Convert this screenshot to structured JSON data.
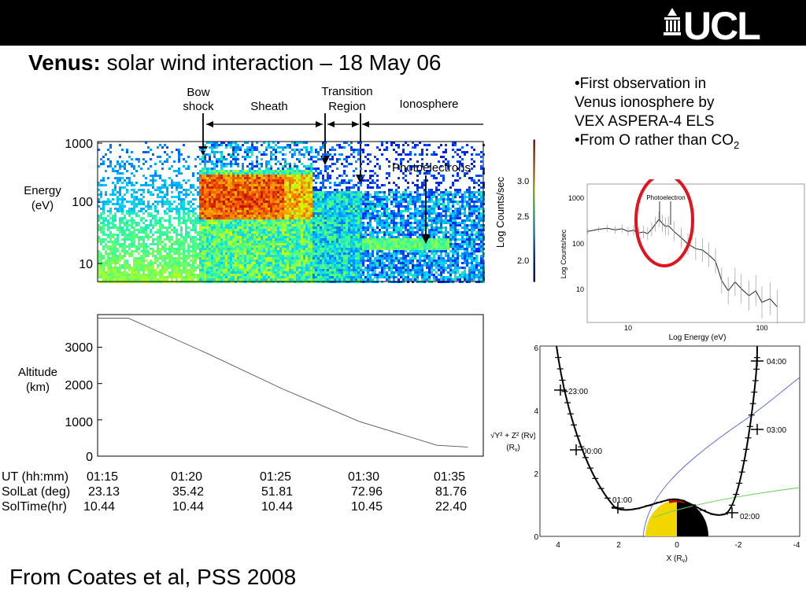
{
  "header": {
    "logo_text": "UCL"
  },
  "slide": {
    "title_bold": "Venus:",
    "title_rest": " solar wind interaction – 18 May 06",
    "bullets": [
      "•First observation in",
      "Venus ionosphere by",
      "VEX ASPERA-4 ELS",
      "•From O rather than CO"
    ],
    "co2_subscript": "2",
    "footer": "From Coates et al, PSS 2008"
  },
  "colors": {
    "topbar": "#000000",
    "circle": "#e0141e",
    "venus_day": "#f2d600",
    "venus_night": "#000000"
  },
  "regions": [
    {
      "label_lines": [
        "Bow",
        "shock"
      ]
    },
    {
      "label_lines": [
        "Sheath"
      ]
    },
    {
      "label_lines": [
        "Transition",
        "Region"
      ]
    },
    {
      "label_lines": [
        "Ionosphere"
      ]
    }
  ],
  "time_table": {
    "labels": [
      "UT (hh:mm)",
      "SolLat (deg)",
      "SolTime(hr)"
    ],
    "ut": [
      "01:15",
      "01:20",
      "01:25",
      "01:30",
      "01:35"
    ],
    "sollat": [
      "23.13",
      "35.42",
      "51.81",
      "72.96",
      "81.76"
    ],
    "soltime": [
      "10.44",
      "10.44",
      "10.44",
      "10.45",
      "22.40"
    ]
  },
  "chart_data": [
    {
      "type": "heatmap",
      "title": "",
      "ylabel_lines": [
        "Energy",
        "(eV)"
      ],
      "y_ticks": [
        "1000",
        "100",
        "10"
      ],
      "y_scale": "log",
      "ylim": [
        5,
        1000
      ],
      "annotation": "Photoelectrons",
      "colorbar": {
        "label": "Log Counts/sec",
        "ticks": [
          "3.0",
          "2.5",
          "2.0"
        ],
        "range": [
          1.8,
          3.4
        ]
      }
    },
    {
      "type": "line",
      "ylabel_lines": [
        "Altitude",
        "(km)"
      ],
      "y_ticks": [
        "3000",
        "2000",
        "1000",
        "0"
      ],
      "ylim": [
        0,
        3900
      ],
      "x_labels": [
        "01:15",
        "01:20",
        "01:25",
        "01:30",
        "01:35"
      ],
      "series": [
        {
          "x": [
            "01:15",
            "01:20",
            "01:25",
            "01:30",
            "01:35",
            "01:37"
          ],
          "y": [
            3800,
            2850,
            1850,
            950,
            300,
            250
          ]
        }
      ]
    },
    {
      "type": "line",
      "xlabel": "Log Energy (eV)",
      "ylabel": "Log Counts/sec",
      "x_scale": "log",
      "y_scale": "log",
      "x_ticks": [
        "10",
        "100"
      ],
      "y_ticks": [
        "1000",
        "100",
        "10"
      ],
      "annotation": "Photoelectron",
      "series": [
        {
          "x": [
            5,
            6,
            7,
            8,
            9,
            10,
            11,
            12,
            13,
            14,
            15,
            16,
            17,
            18,
            19,
            20,
            22,
            25,
            28,
            32,
            36,
            40,
            45,
            50,
            56,
            63,
            70,
            80,
            90,
            100,
            115,
            130
          ],
          "y": [
            180,
            200,
            210,
            195,
            205,
            180,
            190,
            165,
            175,
            160,
            200,
            260,
            330,
            270,
            230,
            240,
            180,
            130,
            95,
            75,
            70,
            55,
            40,
            15,
            9,
            14,
            10,
            7,
            9,
            5,
            6,
            4
          ]
        }
      ]
    },
    {
      "type": "line",
      "xlabel": "X (Rv)",
      "ylabel": "√Y² + Z² (Rv)",
      "x_ticks": [
        "4",
        "2",
        "0",
        "-2",
        "-4"
      ],
      "y_ticks": [
        "6",
        "4",
        "2",
        "0"
      ],
      "xlim": [
        4.3,
        -4.3
      ],
      "ylim": [
        0,
        6.1
      ],
      "time_marks": [
        "23:00",
        "00:00",
        "01:00",
        "02:00",
        "03:00",
        "04:00"
      ]
    }
  ]
}
